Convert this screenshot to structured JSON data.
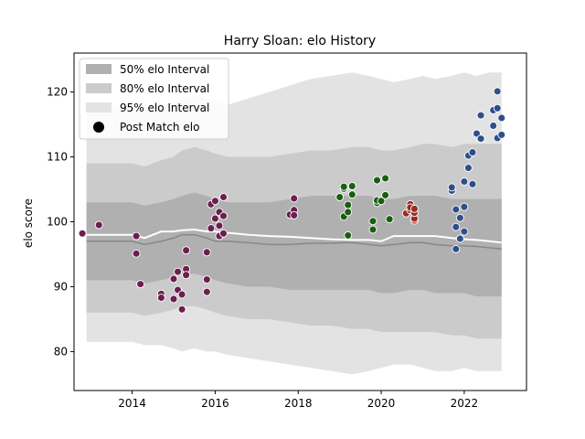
{
  "chart_data": {
    "type": "scatter",
    "title": "Harry Sloan: elo History",
    "xlabel": "",
    "ylabel": "elo score",
    "xlim": [
      2012.6,
      2023.5
    ],
    "ylim": [
      74,
      126
    ],
    "xticks": [
      2014,
      2016,
      2018,
      2020,
      2022
    ],
    "yticks": [
      80,
      90,
      100,
      110,
      120
    ],
    "grid": false,
    "legend_placement": "top-left",
    "legend": {
      "interval_50": "50% elo Interval",
      "interval_80": "80% elo Interval",
      "interval_95": "95% elo Interval",
      "post_match": "Post Match elo"
    },
    "colors": {
      "band_50": "#b0b0b0",
      "band_80": "#cbcbcb",
      "band_95": "#e3e3e3",
      "median_line": "#888888",
      "mean_line": "#ffffff",
      "purple": "#6b1f4e",
      "green": "#1a5e12",
      "red": "#9b2b24",
      "blue": "#2e4f8a"
    },
    "bands": {
      "x": [
        2012.9,
        2013.5,
        2014.0,
        2014.3,
        2014.7,
        2015.0,
        2015.2,
        2015.5,
        2015.8,
        2016.0,
        2016.3,
        2016.8,
        2017.3,
        2017.8,
        2018.3,
        2018.8,
        2019.3,
        2019.7,
        2020.0,
        2020.3,
        2020.7,
        2021.0,
        2021.3,
        2021.7,
        2022.0,
        2022.3,
        2022.6,
        2022.9
      ],
      "p95_upper": [
        117,
        117.5,
        118,
        118,
        118,
        118,
        119,
        119.5,
        119,
        118.5,
        118,
        119,
        120,
        121,
        122,
        122.5,
        123,
        122.5,
        122,
        121.5,
        122,
        122.5,
        122,
        122.5,
        123,
        122.5,
        123,
        123
      ],
      "p80_upper": [
        109,
        109,
        109,
        108.5,
        109.5,
        110,
        111,
        111.5,
        111,
        110.5,
        110,
        110,
        110,
        110.5,
        111,
        111,
        111.5,
        111.5,
        111,
        111,
        111.5,
        112,
        112,
        111.5,
        112,
        112,
        112,
        112
      ],
      "p50_upper": [
        103,
        103,
        103,
        102.5,
        103,
        103.5,
        104,
        104.5,
        104,
        103.5,
        103,
        103,
        103,
        103.5,
        104,
        104,
        104,
        104,
        103.5,
        103.5,
        104,
        104,
        104,
        103.5,
        103.5,
        103.5,
        103.5,
        103.5
      ],
      "mean": [
        98,
        98,
        98,
        97.5,
        98.5,
        98.5,
        98.7,
        98.8,
        98.5,
        98.5,
        98.3,
        98,
        97.8,
        97.7,
        97.5,
        97.3,
        97.2,
        97.2,
        97.0,
        97.8,
        97.8,
        97.8,
        97.8,
        97.5,
        97.3,
        97.2,
        97.0,
        96.8
      ],
      "median": [
        97,
        97,
        97,
        96.5,
        97,
        97.5,
        98,
        98,
        97.5,
        97,
        97,
        96.8,
        96.5,
        96.5,
        96.7,
        96.7,
        96.8,
        96.5,
        96.3,
        96.5,
        96.8,
        96.8,
        96.5,
        96.3,
        96.3,
        96.2,
        96.0,
        95.8
      ],
      "p50_lower": [
        91,
        91,
        91,
        90.5,
        91,
        91.5,
        92,
        92,
        91.5,
        91,
        90.5,
        90,
        90,
        89.5,
        89.5,
        89.5,
        89.5,
        89.5,
        89,
        89,
        89.5,
        89.5,
        89,
        89,
        89,
        88.5,
        88.5,
        88.5
      ],
      "p80_lower": [
        86,
        86,
        86,
        85.5,
        86,
        86.5,
        87,
        87,
        86.5,
        86,
        85.5,
        85,
        85,
        84.5,
        84,
        84,
        83.5,
        83.5,
        83,
        83,
        83,
        83,
        83,
        82.5,
        82.5,
        82,
        82,
        82
      ],
      "p95_lower": [
        81.5,
        81.5,
        81.5,
        81,
        81,
        80.5,
        80,
        80.5,
        80,
        80,
        79.5,
        79,
        78.5,
        78,
        77.5,
        77,
        76.5,
        77,
        77.5,
        78,
        78,
        77.5,
        77,
        77,
        77.5,
        77,
        77,
        77
      ]
    },
    "series": [
      {
        "color_key": "purple",
        "x": [
          2012.8,
          2013.2,
          2014.1,
          2014.1,
          2014.2,
          2014.7,
          2014.7,
          2015.0,
          2015.0,
          2015.1,
          2015.1,
          2015.2,
          2015.2,
          2015.3,
          2015.3,
          2015.3,
          2015.8,
          2015.8,
          2015.8,
          2015.9,
          2015.9,
          2016.0,
          2016.0,
          2016.1,
          2016.1,
          2016.1,
          2016.2,
          2016.2,
          2016.2,
          2017.8,
          2017.9,
          2017.9,
          2017.9
        ],
        "y": [
          98.2,
          99.5,
          97.8,
          95.1,
          90.4,
          88.9,
          88.3,
          91.2,
          88.1,
          92.3,
          89.5,
          86.5,
          88.8,
          92.7,
          91.8,
          95.6,
          89.2,
          91.1,
          95.3,
          99.0,
          102.7,
          103.2,
          100.5,
          101.5,
          99.4,
          97.8,
          98.2,
          103.8,
          100.9,
          101.1,
          103.6,
          101.8,
          101.0
        ]
      },
      {
        "color_key": "green",
        "x": [
          2019.0,
          2019.1,
          2019.1,
          2019.1,
          2019.2,
          2019.2,
          2019.2,
          2019.3,
          2019.3,
          2019.8,
          2019.8,
          2019.9,
          2019.9,
          2019.9,
          2020.0,
          2020.1,
          2020.1,
          2020.2
        ],
        "y": [
          103.8,
          105.1,
          100.8,
          105.4,
          101.5,
          102.6,
          97.9,
          104.2,
          105.5,
          100.1,
          98.8,
          102.9,
          103.3,
          106.4,
          103.2,
          104.1,
          106.7,
          100.4
        ]
      },
      {
        "color_key": "red",
        "x": [
          2020.6,
          2020.7,
          2020.7,
          2020.7,
          2020.8,
          2020.8,
          2020.8,
          2020.8
        ],
        "y": [
          101.3,
          102.7,
          101.8,
          102.2,
          100.2,
          100.5,
          101.4,
          102.0
        ]
      },
      {
        "color_key": "blue",
        "x": [
          2021.7,
          2021.7,
          2021.8,
          2021.8,
          2021.8,
          2021.9,
          2021.9,
          2022.0,
          2022.0,
          2022.0,
          2022.1,
          2022.1,
          2022.2,
          2022.2,
          2022.3,
          2022.4,
          2022.4,
          2022.7,
          2022.7,
          2022.8,
          2022.8,
          2022.8,
          2022.9,
          2022.9
        ],
        "y": [
          104.8,
          105.3,
          101.9,
          99.2,
          95.8,
          97.4,
          100.6,
          102.3,
          98.5,
          106.2,
          108.3,
          110.2,
          105.8,
          110.7,
          113.6,
          112.8,
          116.4,
          114.8,
          117.2,
          112.9,
          117.5,
          120.1,
          116.0,
          113.4
        ]
      }
    ]
  }
}
